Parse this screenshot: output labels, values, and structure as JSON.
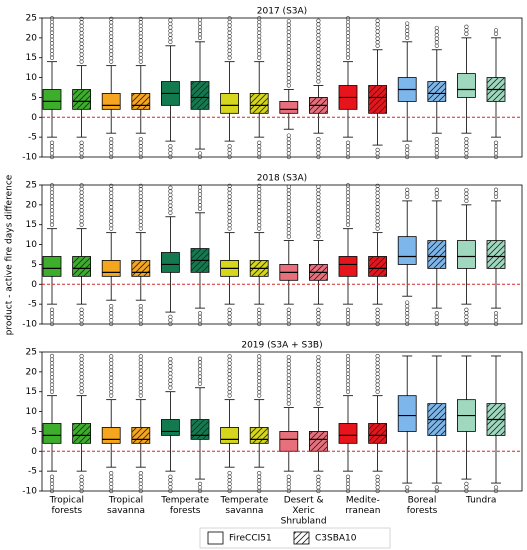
{
  "shared": {
    "y_label": "product - active fire days difference",
    "categories": [
      [
        "Tropical",
        "forests"
      ],
      [
        "Tropical",
        "savanna"
      ],
      [
        "Temperate",
        "forests"
      ],
      [
        "Temperate",
        "savanna"
      ],
      [
        "Desert &",
        "Xeric",
        "Shrubland"
      ],
      [
        "Medite-",
        "rranean"
      ],
      [
        "Boreal",
        "forests"
      ],
      [
        "Tundra"
      ]
    ],
    "colors": [
      "#3dae2b",
      "#f5a51e",
      "#137a4f",
      "#d6d61c",
      "#e8707c",
      "#e8141c",
      "#7db6ea",
      "#9fd8bf"
    ],
    "hline": 0,
    "hline_color": "#d62728"
  },
  "chart_data": [
    {
      "type": "box",
      "title": "2017 (S3A)",
      "ylim": [
        -10,
        25
      ],
      "yticks": [
        -10,
        -5,
        0,
        5,
        10,
        15,
        20,
        25
      ],
      "series": [
        {
          "name": "FireCCI51",
          "hatch": false,
          "values": [
            [
              -5,
              2,
              4,
              7,
              14
            ],
            [
              -4,
              2,
              3,
              6,
              13
            ],
            [
              -6,
              3,
              6,
              9,
              18
            ],
            [
              -6,
              1,
              3,
              6,
              14
            ],
            [
              -3,
              1,
              2,
              4,
              7
            ],
            [
              -5,
              2,
              5,
              8,
              14
            ],
            [
              -6,
              4,
              7,
              10,
              19
            ],
            [
              -4,
              5,
              7,
              11,
              20
            ]
          ],
          "outliers": [
            [
              [
                -10,
                -6
              ],
              [
                15,
                25
              ]
            ],
            [
              [
                -10,
                -5
              ],
              [
                14,
                25
              ]
            ],
            [
              [
                -10,
                -7
              ],
              [
                19,
                25
              ]
            ],
            [
              [
                -10,
                -7
              ],
              [
                15,
                25
              ]
            ],
            [
              [
                -10,
                -4
              ],
              [
                8,
                25
              ]
            ],
            [
              [
                -10,
                -6
              ],
              [
                15,
                25
              ]
            ],
            [
              [
                -10,
                -7
              ],
              [
                20,
                24
              ]
            ],
            [
              [
                -10,
                -5
              ],
              [
                21,
                23
              ]
            ]
          ]
        },
        {
          "name": "C3SBA10",
          "hatch": true,
          "values": [
            [
              -5,
              2,
              4,
              7,
              13
            ],
            [
              -4,
              2,
              3,
              6,
              13
            ],
            [
              -8,
              2,
              5,
              9,
              19
            ],
            [
              -5,
              1,
              3,
              6,
              14
            ],
            [
              -4,
              1,
              3,
              5,
              8
            ],
            [
              -7,
              1,
              5,
              8,
              17
            ],
            [
              -4,
              4,
              6,
              9,
              17
            ],
            [
              -5,
              4,
              7,
              10,
              20
            ]
          ],
          "outliers": [
            [
              [
                -10,
                -6
              ],
              [
                14,
                25
              ]
            ],
            [
              [
                -10,
                -5
              ],
              [
                14,
                25
              ]
            ],
            [
              [
                -10,
                -9
              ],
              [
                20,
                25
              ]
            ],
            [
              [
                -10,
                -6
              ],
              [
                15,
                25
              ]
            ],
            [
              [
                -10,
                -5
              ],
              [
                9,
                25
              ]
            ],
            [
              [
                -10,
                -8
              ],
              [
                18,
                25
              ]
            ],
            [
              [
                -10,
                -5
              ],
              [
                18,
                23
              ]
            ],
            [
              [
                -10,
                -6
              ],
              [
                21,
                22
              ]
            ]
          ]
        }
      ]
    },
    {
      "type": "box",
      "title": "2018 (S3A)",
      "ylim": [
        -10,
        25
      ],
      "yticks": [
        -10,
        -5,
        0,
        5,
        10,
        15,
        20,
        25
      ],
      "series": [
        {
          "name": "FireCCI51",
          "hatch": false,
          "values": [
            [
              -5,
              2,
              4,
              7,
              14
            ],
            [
              -4,
              2,
              3,
              6,
              13
            ],
            [
              -7,
              3,
              5,
              8,
              17
            ],
            [
              -5,
              2,
              4,
              6,
              13
            ],
            [
              -5,
              1,
              3,
              5,
              11
            ],
            [
              -5,
              2,
              5,
              7,
              14
            ],
            [
              -3,
              5,
              7,
              12,
              21
            ],
            [
              -5,
              4,
              7,
              11,
              20
            ]
          ],
          "outliers": [
            [
              [
                -10,
                -6
              ],
              [
                15,
                25
              ]
            ],
            [
              [
                -10,
                -5
              ],
              [
                14,
                25
              ]
            ],
            [
              [
                -10,
                -8
              ],
              [
                18,
                25
              ]
            ],
            [
              [
                -10,
                -6
              ],
              [
                14,
                25
              ]
            ],
            [
              [
                -10,
                -6
              ],
              [
                12,
                25
              ]
            ],
            [
              [
                -10,
                -6
              ],
              [
                15,
                25
              ]
            ],
            [
              [
                -10,
                -4
              ],
              [
                22,
                24
              ]
            ],
            [
              [
                -10,
                -6
              ],
              [
                21,
                24
              ]
            ]
          ]
        },
        {
          "name": "C3SBA10",
          "hatch": true,
          "values": [
            [
              -5,
              2,
              4,
              7,
              14
            ],
            [
              -4,
              2,
              3,
              6,
              13
            ],
            [
              -6,
              3,
              6,
              9,
              18
            ],
            [
              -5,
              2,
              4,
              6,
              13
            ],
            [
              -5,
              1,
              3,
              5,
              11
            ],
            [
              -5,
              2,
              4,
              7,
              13
            ],
            [
              -6,
              4,
              7,
              11,
              21
            ],
            [
              -6,
              4,
              7,
              11,
              21
            ]
          ],
          "outliers": [
            [
              [
                -10,
                -6
              ],
              [
                15,
                25
              ]
            ],
            [
              [
                -10,
                -5
              ],
              [
                14,
                25
              ]
            ],
            [
              [
                -10,
                -7
              ],
              [
                19,
                25
              ]
            ],
            [
              [
                -10,
                -6
              ],
              [
                14,
                25
              ]
            ],
            [
              [
                -10,
                -6
              ],
              [
                12,
                25
              ]
            ],
            [
              [
                -10,
                -6
              ],
              [
                14,
                25
              ]
            ],
            [
              [
                -10,
                -7
              ],
              [
                22,
                24
              ]
            ],
            [
              [
                -10,
                -7
              ],
              [
                22,
                24
              ]
            ]
          ]
        }
      ]
    },
    {
      "type": "box",
      "title": "2019 (S3A + S3B)",
      "ylim": [
        -10,
        25
      ],
      "yticks": [
        -10,
        -5,
        0,
        5,
        10,
        15,
        20,
        25
      ],
      "series": [
        {
          "name": "FireCCI51",
          "hatch": false,
          "values": [
            [
              -5,
              2,
              4,
              7,
              14
            ],
            [
              -4,
              2,
              3,
              6,
              13
            ],
            [
              -5,
              4,
              5,
              8,
              15
            ],
            [
              -4,
              2,
              3,
              6,
              13
            ],
            [
              -5,
              0,
              3,
              5,
              11
            ],
            [
              -5,
              2,
              4,
              7,
              14
            ],
            [
              -8,
              5,
              9,
              14,
              24
            ],
            [
              -7,
              5,
              9,
              13,
              24
            ]
          ],
          "outliers": [
            [
              [
                -10,
                -6
              ],
              [
                15,
                24
              ]
            ],
            [
              [
                -10,
                -5
              ],
              [
                14,
                24
              ]
            ],
            [
              [
                -10,
                -6
              ],
              [
                16,
                24
              ]
            ],
            [
              [
                -10,
                -5
              ],
              [
                14,
                24
              ]
            ],
            [
              [
                -10,
                -6
              ],
              [
                12,
                24
              ]
            ],
            [
              [
                -10,
                -6
              ],
              [
                15,
                24
              ]
            ],
            [
              [
                -10,
                -9
              ],
              null
            ],
            [
              [
                -10,
                -8
              ],
              null
            ]
          ]
        },
        {
          "name": "C3SBA10",
          "hatch": true,
          "values": [
            [
              -5,
              2,
              4,
              7,
              14
            ],
            [
              -4,
              2,
              3,
              6,
              13
            ],
            [
              -7,
              3,
              4,
              8,
              16
            ],
            [
              -4,
              2,
              3,
              6,
              13
            ],
            [
              -5,
              0,
              3,
              5,
              11
            ],
            [
              -5,
              2,
              4,
              7,
              14
            ],
            [
              -8,
              4,
              8,
              12,
              24
            ],
            [
              -8,
              4,
              8,
              12,
              24
            ]
          ],
          "outliers": [
            [
              [
                -10,
                -6
              ],
              [
                15,
                24
              ]
            ],
            [
              [
                -10,
                -5
              ],
              [
                14,
                24
              ]
            ],
            [
              [
                -10,
                -8
              ],
              [
                17,
                24
              ]
            ],
            [
              [
                -10,
                -5
              ],
              [
                14,
                24
              ]
            ],
            [
              [
                -10,
                -6
              ],
              [
                12,
                24
              ]
            ],
            [
              [
                -10,
                -6
              ],
              [
                15,
                24
              ]
            ],
            [
              [
                -10,
                -9
              ],
              null
            ],
            [
              [
                -10,
                -9
              ],
              null
            ]
          ]
        }
      ]
    }
  ]
}
